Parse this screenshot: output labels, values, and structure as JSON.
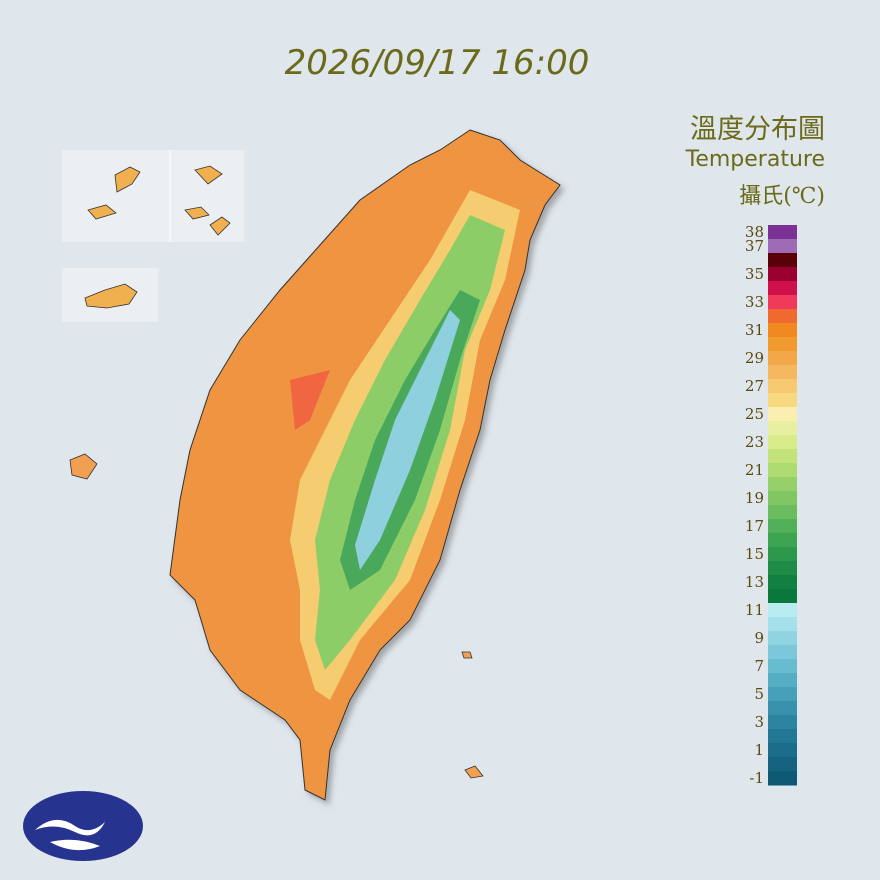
{
  "timestamp": "2026/09/17 16:00",
  "legend": {
    "title": "溫度分布圖",
    "subtitle": "Temperature",
    "unit": "攝氏(℃)",
    "ticks": [
      38,
      37,
      35,
      33,
      31,
      29,
      27,
      25,
      23,
      21,
      19,
      17,
      15,
      13,
      11,
      9,
      7,
      5,
      3,
      1,
      -1
    ],
    "colors": [
      "#7b3294",
      "#9e6bb5",
      "#5a0008",
      "#9a0030",
      "#d0104a",
      "#f03a5a",
      "#f06a30",
      "#f08a20",
      "#f09a30",
      "#f2a848",
      "#f5b860",
      "#f6c870",
      "#f8d880",
      "#faeeb0",
      "#e6f0a0",
      "#d8ec8c",
      "#c4e27a",
      "#aedb72",
      "#96d06a",
      "#80c664",
      "#6abc5e",
      "#52b058",
      "#3da452",
      "#2c984c",
      "#1e8c46",
      "#128040",
      "#0a783c",
      "#b8ecf0",
      "#a4e0ea",
      "#90d4e2",
      "#7cc8da",
      "#68bccf",
      "#56aec4",
      "#46a0b8",
      "#3892ac",
      "#2c84a0",
      "#227894",
      "#1a6c88",
      "#14627e",
      "#0e5874"
    ]
  }
}
